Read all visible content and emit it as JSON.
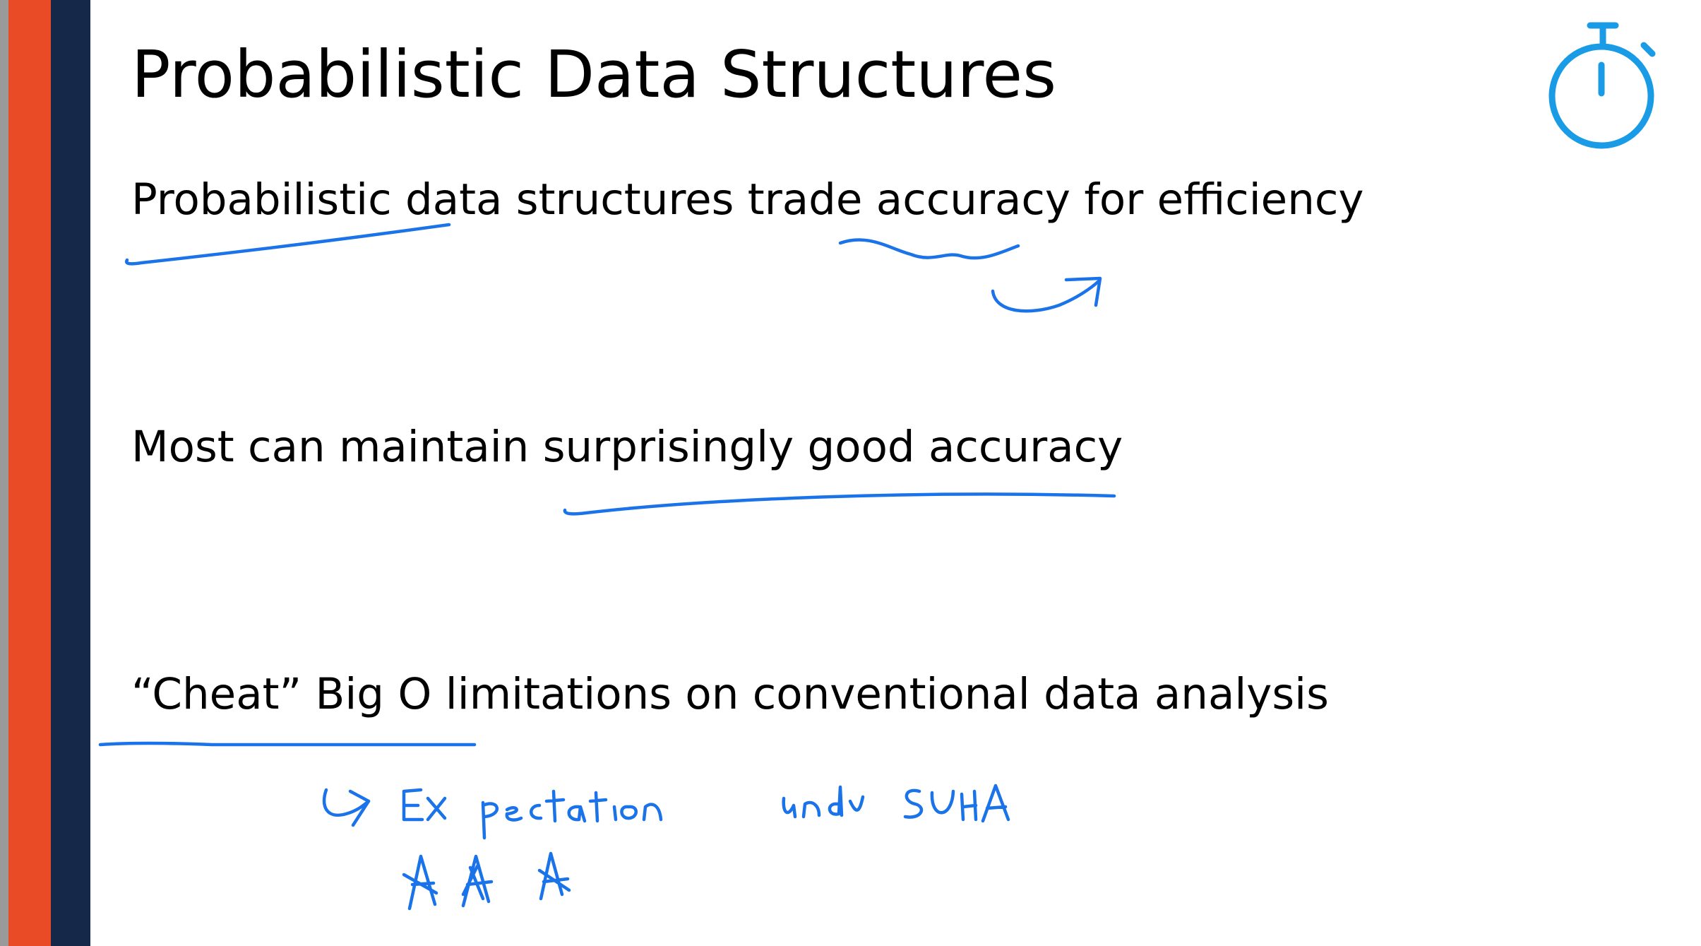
{
  "slide": {
    "title": "Probabilistic Data Structures",
    "bullets": [
      "Probabilistic data structures trade accuracy for efficiency",
      "Most can maintain surprisingly good accuracy",
      "“Cheat” Big O limitations on conventional data analysis"
    ]
  },
  "icons": {
    "timer": "stopwatch-icon"
  },
  "colors": {
    "orange_bar": "#e94b26",
    "navy_bar": "#16284a",
    "ink": "#1a73e8",
    "timer": "#1a9be6"
  }
}
